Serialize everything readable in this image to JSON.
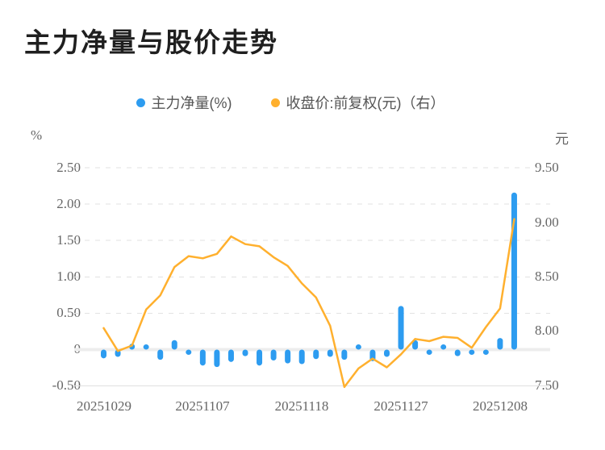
{
  "title": "主力净量与股价走势",
  "legend": {
    "items": [
      {
        "label": "主力净量(%)",
        "color": "#2D9CF0"
      },
      {
        "label": "收盘价:前复权(元)（右）",
        "color": "#FFB02E"
      }
    ]
  },
  "axes": {
    "left_unit": "%",
    "right_unit": "元",
    "left_ticks": [
      "2.50",
      "2.00",
      "1.50",
      "1.00",
      "0.50",
      "0",
      "-0.50"
    ],
    "right_ticks": [
      "9.50",
      "9.00",
      "8.50",
      "8.00",
      "7.50"
    ],
    "x_labels": [
      "20251029",
      "20251107",
      "20251118",
      "20251127",
      "20251208"
    ]
  },
  "colors": {
    "bar": "#2D9CF0",
    "line": "#FFB02E",
    "grid_dashed": "#e2e2e2",
    "zero_line": "#ededed",
    "bottom_line": "#e0e0e0",
    "axis_text": "#666666"
  },
  "chart_data": {
    "type": "bar+line",
    "title": "主力净量与股价走势",
    "x": [
      "20251029",
      "20251030",
      "20251031",
      "20251103",
      "20251104",
      "20251105",
      "20251106",
      "20251107",
      "20251110",
      "20251111",
      "20251112",
      "20251113",
      "20251114",
      "20251117",
      "20251118",
      "20251119",
      "20251120",
      "20251121",
      "20251124",
      "20251125",
      "20251126",
      "20251127",
      "20251128",
      "20251201",
      "20251202",
      "20251203",
      "20251204",
      "20251205",
      "20251208",
      "20251209"
    ],
    "x_tick_labels": {
      "labels": [
        "20251029",
        "20251107",
        "20251118",
        "20251127",
        "20251208"
      ],
      "day_indices": [
        0,
        7,
        14,
        21,
        28
      ]
    },
    "series": [
      {
        "name": "主力净量(%)",
        "type": "bar",
        "axis": "left",
        "color": "#2D9CF0",
        "values": [
          -0.12,
          -0.1,
          0.08,
          0.05,
          -0.14,
          0.13,
          -0.07,
          -0.22,
          -0.24,
          -0.17,
          -0.09,
          -0.22,
          -0.15,
          -0.19,
          -0.2,
          -0.13,
          -0.1,
          -0.14,
          0.06,
          -0.16,
          -0.1,
          0.6,
          0.13,
          -0.04,
          0.05,
          -0.09,
          -0.03,
          -0.07,
          0.16,
          2.16
        ]
      },
      {
        "name": "收盘价:前复权(元)（右）",
        "type": "line",
        "axis": "right",
        "color": "#FFB02E",
        "values": [
          8.03,
          7.82,
          7.87,
          8.2,
          8.33,
          8.59,
          8.69,
          8.67,
          8.71,
          8.87,
          8.8,
          8.78,
          8.68,
          8.6,
          8.44,
          8.31,
          8.05,
          7.49,
          7.66,
          7.75,
          7.67,
          7.79,
          7.93,
          7.91,
          7.95,
          7.94,
          7.85,
          8.04,
          8.21,
          9.03
        ]
      }
    ],
    "left_axis": {
      "label": "%",
      "range": [
        -0.5,
        2.5
      ],
      "ticks": [
        2.5,
        2.0,
        1.5,
        1.0,
        0.5,
        0,
        -0.5
      ]
    },
    "right_axis": {
      "label": "元",
      "range": [
        7.5,
        9.5
      ],
      "ticks": [
        9.5,
        9.0,
        8.5,
        8.0,
        7.5
      ]
    },
    "grid": "dashed-horizontal",
    "legend_position": "top-center"
  }
}
